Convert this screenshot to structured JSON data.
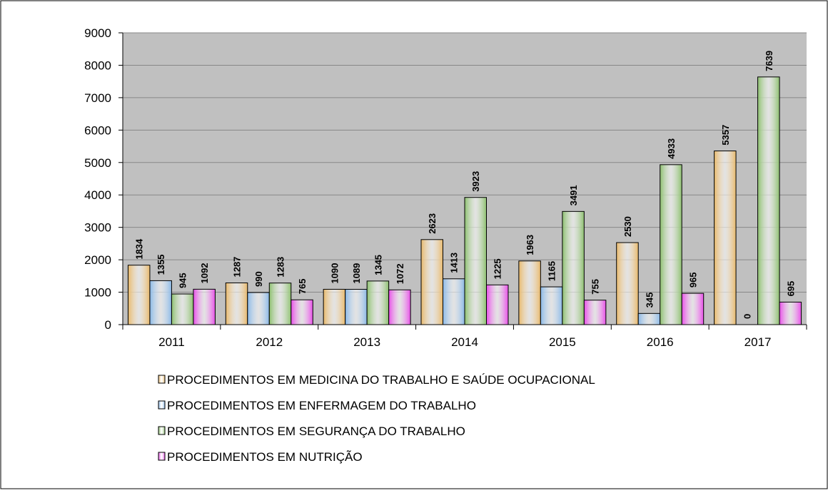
{
  "chart_data": {
    "type": "bar",
    "categories": [
      "2011",
      "2012",
      "2013",
      "2014",
      "2015",
      "2016",
      "2017"
    ],
    "series": [
      {
        "name": "PROCEDIMENTOS EM MEDICINA DO TRABALHO E SAÚDE OCUPACIONAL",
        "color": "#e8b86a",
        "values": [
          1834,
          1287,
          1090,
          2623,
          1963,
          2530,
          5357
        ]
      },
      {
        "name": "PROCEDIMENTOS EM ENFERMAGEM DO TRABALHO",
        "color": "#8ab8e6",
        "values": [
          1355,
          990,
          1089,
          1413,
          1165,
          345,
          0
        ]
      },
      {
        "name": "PROCEDIMENTOS EM SEGURANÇA DO TRABALHO",
        "color": "#8cbf6e",
        "values": [
          945,
          1283,
          1345,
          3923,
          3491,
          4933,
          7639
        ]
      },
      {
        "name": "PROCEDIMENTOS EM NUTRIÇÃO",
        "color": "#e84ee8",
        "values": [
          1092,
          765,
          1072,
          1225,
          755,
          965,
          695
        ]
      }
    ],
    "ylim": [
      0,
      9000
    ],
    "yticks": [
      0,
      1000,
      2000,
      3000,
      4000,
      5000,
      6000,
      7000,
      8000,
      9000
    ],
    "grid": true
  }
}
